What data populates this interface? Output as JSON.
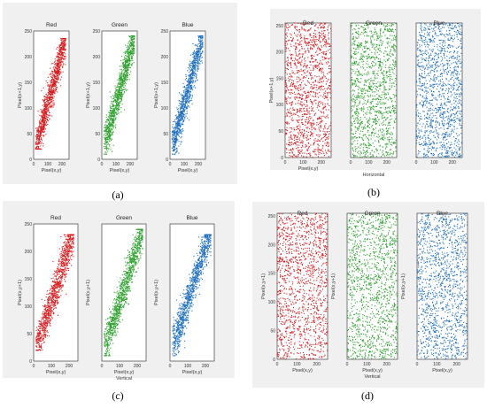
{
  "panels": [
    {
      "id": "a",
      "label": "(a)",
      "subplots": [
        {
          "title": "Red",
          "color": "#d7191c",
          "xlabel": "Pixel(x,y)",
          "ylabel": "Pixel(x+1,y)",
          "xticks": [
            "0",
            "100",
            "200"
          ],
          "yticks": [
            "0",
            "50",
            "100",
            "150",
            "200",
            "250"
          ]
        },
        {
          "title": "Green",
          "color": "#2ca02c",
          "xlabel": "Pixel(x,y)",
          "ylabel": "Pixel(x+1,y)",
          "xticks": [
            "0",
            "100",
            "200"
          ],
          "yticks": [
            "0",
            "50",
            "100",
            "150",
            "200",
            "250"
          ]
        },
        {
          "title": "Blue",
          "color": "#1f6fbf",
          "xlabel": "Pixel(x,y)",
          "ylabel": "Pixel(x+1,y)",
          "xticks": [
            "0",
            "100",
            "200"
          ],
          "yticks": [
            "0",
            "50",
            "100",
            "150",
            "200",
            "250"
          ]
        }
      ],
      "footer": ""
    },
    {
      "id": "b",
      "label": "(b)",
      "subplots": [
        {
          "title": "Red",
          "color": "#d7191c",
          "xlabel": "Pixel(x,y)",
          "ylabel": "Pixel(x+1,y)",
          "xticks": [
            "0",
            "100",
            "200"
          ],
          "yticks": [
            "0",
            "50",
            "100",
            "150",
            "200",
            "250"
          ]
        },
        {
          "title": "Green",
          "color": "#2ca02c",
          "xlabel": "",
          "ylabel": "",
          "xticks": [
            "0",
            "100",
            "200"
          ],
          "yticks": []
        },
        {
          "title": "Blue",
          "color": "#1f6fbf",
          "xlabel": "",
          "ylabel": "",
          "xticks": [
            "0",
            "100",
            "200"
          ],
          "yticks": []
        }
      ],
      "footer": "Horizontal"
    },
    {
      "id": "c",
      "label": "(c)",
      "subplots": [
        {
          "title": "Red",
          "color": "#d7191c",
          "xlabel": "Pixel(x,y)",
          "ylabel": "Pixel(x,y+1)",
          "xticks": [
            "0",
            "100",
            "200"
          ],
          "yticks": [
            "0",
            "50",
            "100",
            "150",
            "200",
            "250"
          ]
        },
        {
          "title": "Green",
          "color": "#2ca02c",
          "xlabel": "Pixel(x,y)",
          "ylabel": "Pixel(x,y+1)",
          "xticks": [
            "0",
            "100",
            "200"
          ],
          "yticks": []
        },
        {
          "title": "Blue",
          "color": "#1f6fbf",
          "xlabel": "Pixel(x,y)",
          "ylabel": "Pixel(x,y+1)",
          "xticks": [
            "0",
            "100",
            "200"
          ],
          "yticks": []
        }
      ],
      "footer": "Vertical"
    },
    {
      "id": "d",
      "label": "(d)",
      "subplots": [
        {
          "title": "Red",
          "color": "#d7191c",
          "xlabel": "Pixel(x,y)",
          "ylabel": "Pixel(x,y+1)",
          "xticks": [
            "0",
            "100",
            "200"
          ],
          "yticks": [
            "0",
            "50",
            "100",
            "150",
            "200",
            "250"
          ]
        },
        {
          "title": "Green",
          "color": "#2ca02c",
          "xlabel": "Pixel(x,y)",
          "ylabel": "Pixel(x,y+1)",
          "xticks": [
            "0",
            "100",
            "200"
          ],
          "yticks": []
        },
        {
          "title": "Blue",
          "color": "#1f6fbf",
          "xlabel": "Pixel(x,y)",
          "ylabel": "Pixel(x,y+1)",
          "xticks": [
            "0",
            "100",
            "200"
          ],
          "yticks": []
        }
      ],
      "footer": "Vertical"
    }
  ],
  "chart_data": [
    {
      "type": "scatter",
      "panel": "a",
      "series": [
        {
          "name": "Red",
          "pattern": "correlated",
          "x_range": [
            20,
            225
          ],
          "y_range": [
            20,
            235
          ]
        },
        {
          "name": "Green",
          "pattern": "correlated",
          "x_range": [
            20,
            230
          ],
          "y_range": [
            10,
            240
          ]
        },
        {
          "name": "Blue",
          "pattern": "correlated",
          "x_range": [
            20,
            230
          ],
          "y_range": [
            10,
            240
          ]
        }
      ],
      "xlim": [
        0,
        250
      ],
      "ylim": [
        0,
        250
      ]
    },
    {
      "type": "scatter",
      "panel": "b",
      "series": [
        {
          "name": "Red",
          "pattern": "uniform",
          "x_range": [
            0,
            255
          ],
          "y_range": [
            0,
            255
          ]
        },
        {
          "name": "Green",
          "pattern": "uniform",
          "x_range": [
            0,
            255
          ],
          "y_range": [
            0,
            255
          ]
        },
        {
          "name": "Blue",
          "pattern": "uniform",
          "x_range": [
            0,
            255
          ],
          "y_range": [
            0,
            255
          ]
        }
      ],
      "xlim": [
        0,
        255
      ],
      "ylim": [
        0,
        255
      ]
    },
    {
      "type": "scatter",
      "panel": "c",
      "series": [
        {
          "name": "Red",
          "pattern": "correlated",
          "x_range": [
            20,
            225
          ],
          "y_range": [
            20,
            230
          ]
        },
        {
          "name": "Green",
          "pattern": "correlated",
          "x_range": [
            20,
            230
          ],
          "y_range": [
            10,
            240
          ]
        },
        {
          "name": "Blue",
          "pattern": "correlated",
          "x_range": [
            20,
            230
          ],
          "y_range": [
            10,
            230
          ]
        }
      ],
      "xlim": [
        0,
        250
      ],
      "ylim": [
        0,
        250
      ]
    },
    {
      "type": "scatter",
      "panel": "d",
      "series": [
        {
          "name": "Red",
          "pattern": "uniform",
          "x_range": [
            0,
            255
          ],
          "y_range": [
            0,
            255
          ]
        },
        {
          "name": "Green",
          "pattern": "uniform",
          "x_range": [
            0,
            255
          ],
          "y_range": [
            0,
            255
          ]
        },
        {
          "name": "Blue",
          "pattern": "uniform",
          "x_range": [
            0,
            255
          ],
          "y_range": [
            0,
            255
          ]
        }
      ],
      "xlim": [
        0,
        255
      ],
      "ylim": [
        0,
        255
      ]
    }
  ]
}
